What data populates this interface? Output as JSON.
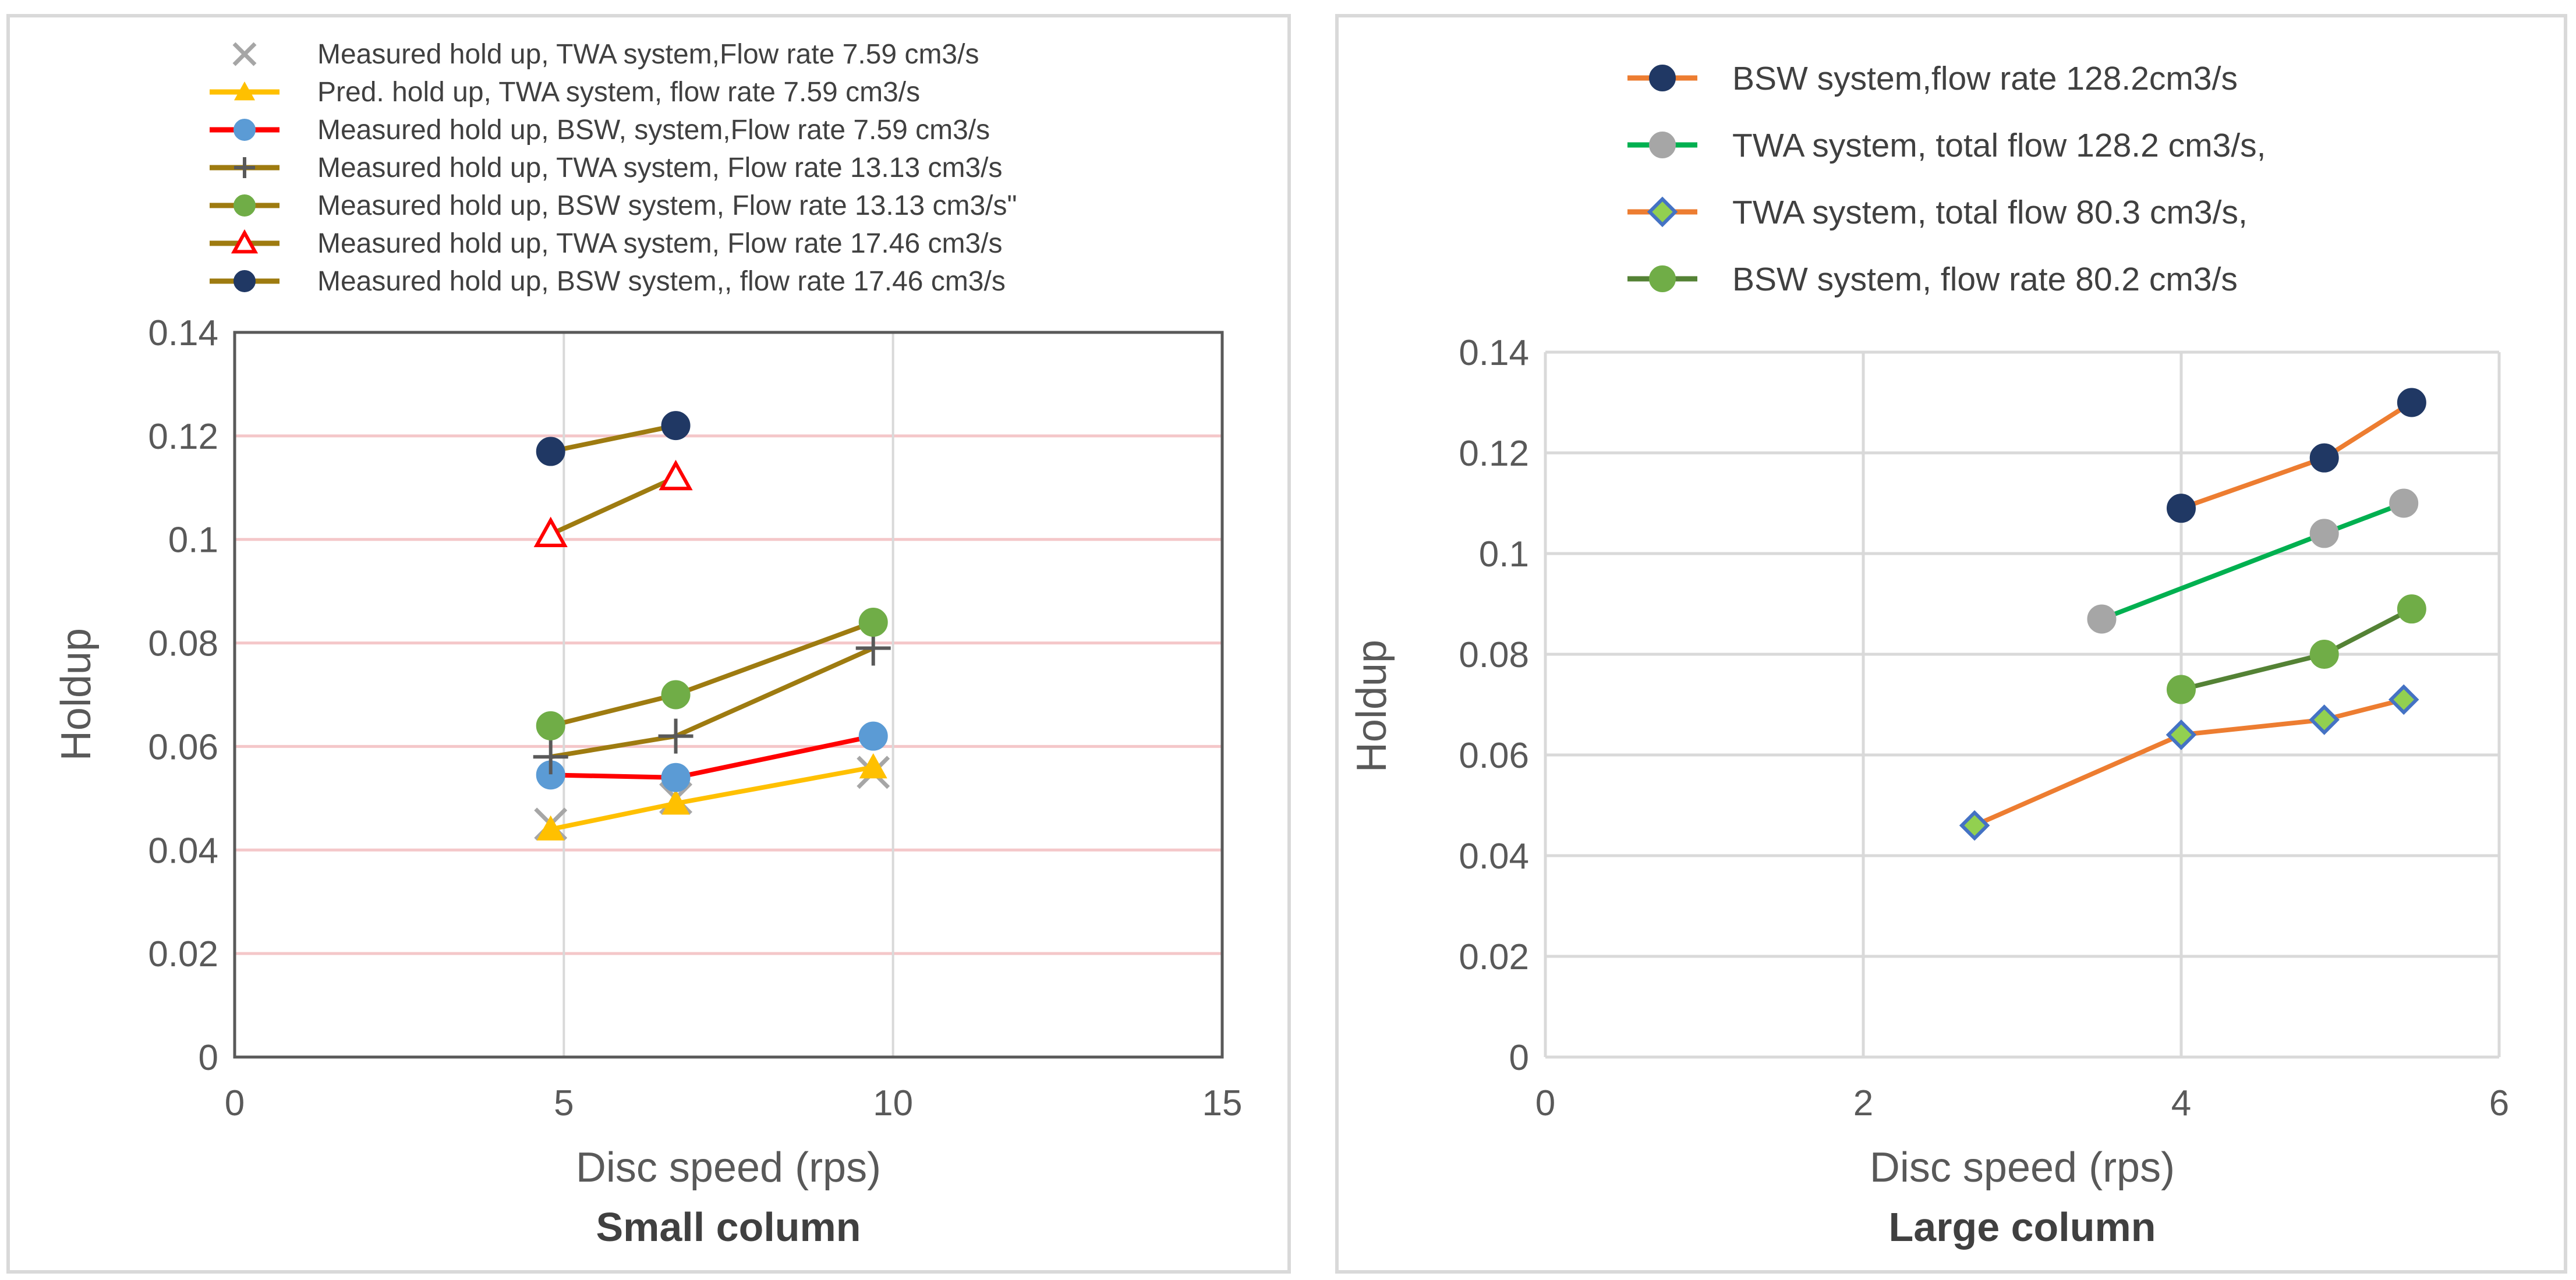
{
  "chart_data": [
    {
      "type": "scatter",
      "caption": "Small column",
      "xlabel": "Disc speed (rps)",
      "ylabel": "Holdup",
      "xlim": [
        0,
        15
      ],
      "ylim": [
        0,
        0.14
      ],
      "xticks": [
        "0",
        "5",
        "10",
        "15"
      ],
      "yticks": [
        "0",
        "0.02",
        "0.04",
        "0.06",
        "0.08",
        "0.1",
        "0.12",
        "0.14"
      ],
      "grid": "horizontal",
      "legend_position": "top",
      "series": [
        {
          "name": "Measured hold up, TWA system,Flow rate 7.59 cm3/s",
          "marker": "x",
          "line": false,
          "color": "#a6a6a6",
          "x": [
            4.8,
            6.7,
            9.7
          ],
          "y": [
            0.045,
            0.05,
            0.055
          ]
        },
        {
          "name": "Pred. hold up, TWA system, flow rate 7.59 cm3/s",
          "marker": "triangle-filled",
          "line": true,
          "color": "#ffc000",
          "x": [
            4.8,
            6.7,
            9.7
          ],
          "y": [
            0.044,
            0.049,
            0.056
          ]
        },
        {
          "name": "Measured hold up, BSW, system,Flow rate 7.59 cm3/s",
          "marker": "circle",
          "line": true,
          "color": "#ff0000",
          "marker_color": "#5b9bd5",
          "x": [
            4.8,
            6.7,
            9.7
          ],
          "y": [
            0.0545,
            0.054,
            0.062
          ]
        },
        {
          "name": "Measured hold up, TWA system, Flow rate 13.13 cm3/s",
          "marker": "plus",
          "line": true,
          "color": "#9e7b10",
          "marker_color": "#595959",
          "x": [
            4.8,
            6.7,
            9.7
          ],
          "y": [
            0.058,
            0.062,
            0.079
          ]
        },
        {
          "name": "Measured hold up, BSW system, Flow rate 13.13 cm3/s\"",
          "marker": "circle",
          "line": true,
          "color": "#9e7b10",
          "marker_color": "#70ad47",
          "x": [
            4.8,
            6.7,
            9.7
          ],
          "y": [
            0.064,
            0.07,
            0.084
          ]
        },
        {
          "name": "Measured hold up, TWA system, Flow rate 17.46 cm3/s",
          "marker": "triangle-open",
          "line": true,
          "color": "#9e7b10",
          "marker_color": "#ff0000",
          "x": [
            4.8,
            6.7
          ],
          "y": [
            0.101,
            0.112
          ]
        },
        {
          "name": "Measured hold up, BSW system,, flow rate 17.46 cm3/s",
          "marker": "circle",
          "line": true,
          "color": "#9e7b10",
          "marker_color": "#203864",
          "x": [
            4.8,
            6.7
          ],
          "y": [
            0.117,
            0.122
          ]
        }
      ]
    },
    {
      "type": "line",
      "caption": "Large column",
      "xlabel": "Disc speed (rps)",
      "ylabel": "Holdup",
      "xlim": [
        0,
        6
      ],
      "ylim": [
        0,
        0.14
      ],
      "xticks": [
        "0",
        "2",
        "4",
        "6"
      ],
      "yticks": [
        "0",
        "0.02",
        "0.04",
        "0.06",
        "0.08",
        "0.1",
        "0.12",
        "0.14"
      ],
      "grid": "both",
      "legend_position": "top",
      "series": [
        {
          "name": "BSW system,flow rate 128.2cm3/s",
          "marker": "circle",
          "line": true,
          "color": "#ed7d31",
          "marker_color": "#203864",
          "x": [
            4.0,
            4.9,
            5.45
          ],
          "y": [
            0.109,
            0.119,
            0.13
          ]
        },
        {
          "name": "TWA system, total flow 128.2 cm3/s,",
          "marker": "circle",
          "line": true,
          "color": "#00b050",
          "marker_color": "#a6a6a6",
          "x": [
            3.5,
            4.9,
            5.4
          ],
          "y": [
            0.087,
            0.104,
            0.11
          ]
        },
        {
          "name": "TWA system, total flow 80.3 cm3/s,",
          "marker": "diamond",
          "line": true,
          "color": "#ed7d31",
          "marker_color": "#92d050",
          "marker_edge": "#4472c4",
          "x": [
            2.7,
            4.0,
            4.9,
            5.4
          ],
          "y": [
            0.046,
            0.064,
            0.067,
            0.071
          ]
        },
        {
          "name": "BSW system, flow rate 80.2 cm3/s",
          "marker": "circle",
          "line": true,
          "color": "#548235",
          "marker_color": "#70ad47",
          "x": [
            4.0,
            4.9,
            5.45
          ],
          "y": [
            0.073,
            0.08,
            0.089
          ]
        }
      ]
    }
  ]
}
